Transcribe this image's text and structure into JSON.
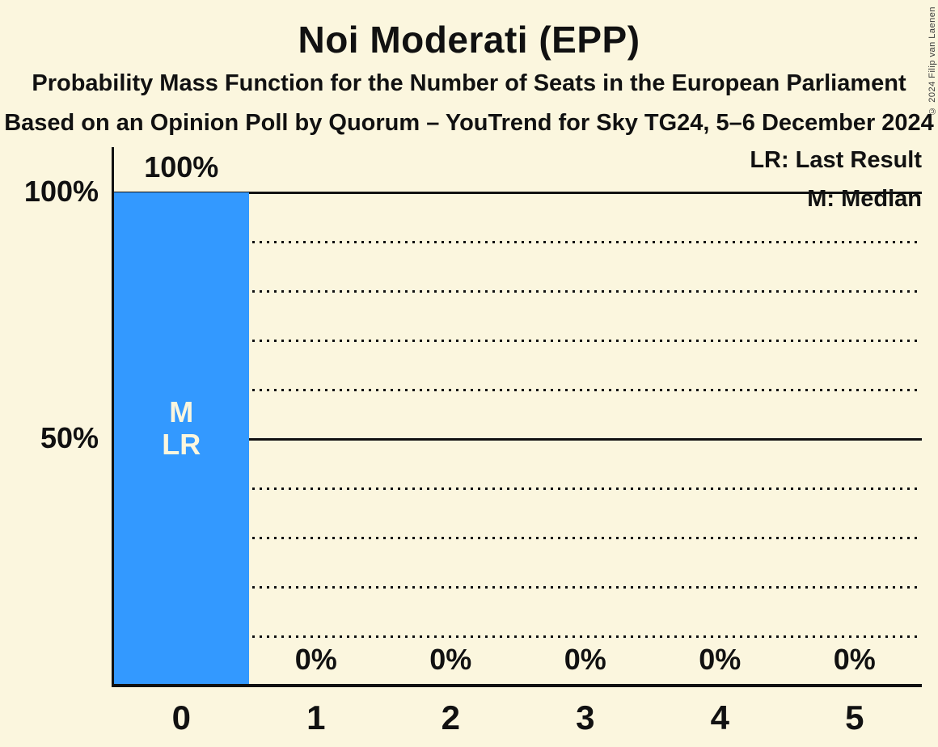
{
  "header": {
    "title": "Noi Moderati (EPP)",
    "subtitle": "Probability Mass Function for the Number of Seats in the European Parliament",
    "source_line": "Based on an Opinion Poll by Quorum – YouTrend for Sky TG24, 5–6 December 2024"
  },
  "legend": {
    "last_result": "LR: Last Result",
    "median": "M: Median"
  },
  "copyright": "© 2024 Filip van Laenen",
  "chart_data": {
    "type": "bar",
    "title": "Noi Moderati (EPP)",
    "categories": [
      "0",
      "1",
      "2",
      "3",
      "4",
      "5"
    ],
    "values": [
      100,
      0,
      0,
      0,
      0,
      0
    ],
    "value_labels": [
      "100%",
      "0%",
      "0%",
      "0%",
      "0%",
      "0%"
    ],
    "bar_annotations": [
      [
        "M",
        "LR"
      ],
      [],
      [],
      [],
      [],
      []
    ],
    "ylim": [
      0,
      100
    ],
    "yticks": [
      {
        "value": 100,
        "label": "100%"
      },
      {
        "value": 50,
        "label": "50%"
      }
    ],
    "gridlines_solid": [
      100,
      50
    ],
    "gridlines_dotted": [
      90,
      80,
      70,
      60,
      40,
      30,
      20,
      10
    ],
    "legend_position": "top-right",
    "grid": true,
    "colors": {
      "background": "#FBF6DE",
      "bar": "#3399FF",
      "text": "#111111",
      "bar_annotation_text": "#FBF6DE"
    }
  }
}
